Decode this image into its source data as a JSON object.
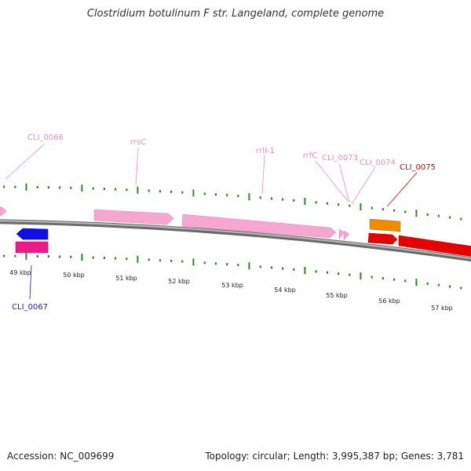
{
  "title": "Clostridium botulinum F str. Langeland, complete genome",
  "accession": "Accession: NC_009699",
  "topology": "Topology: circular; Length: 3,995,387 bp; Genes: 3,781",
  "colors": {
    "backbone": "#8c8c8c",
    "tick": "#2e8b22",
    "rRNA": "#f7a6cf",
    "cds_blue": "#1010e6",
    "cds_magenta": "#ee1a8c",
    "cds_orange": "#f08c00",
    "cds_red": "#e60000"
  },
  "scale_labels": [
    "49 kbp",
    "50 kbp",
    "51 kbp",
    "52 kbp",
    "53 kbp",
    "54 kbp",
    "55 kbp",
    "56 kbp",
    "57 kbp"
  ],
  "features": [
    {
      "label": "CLI_0066",
      "kind": "rRNA",
      "color": "#f08cbe"
    },
    {
      "label": "rrsC",
      "kind": "rRNA",
      "color": "#f08cbe"
    },
    {
      "label": "rrlI-1",
      "kind": "rRNA",
      "color": "#f08cbe"
    },
    {
      "label": "rrfC",
      "kind": "rRNA",
      "color": "#f08cbe"
    },
    {
      "label": "CLI_0073",
      "kind": "rRNA",
      "color": "#f08cbe"
    },
    {
      "label": "CLI_0074",
      "kind": "rRNA",
      "color": "#f08cbe"
    },
    {
      "label": "CLI_0075",
      "kind": "CDS",
      "color": "#e00000"
    },
    {
      "label": "CLI_0067",
      "kind": "CDS",
      "color": "#1a1acc"
    }
  ]
}
